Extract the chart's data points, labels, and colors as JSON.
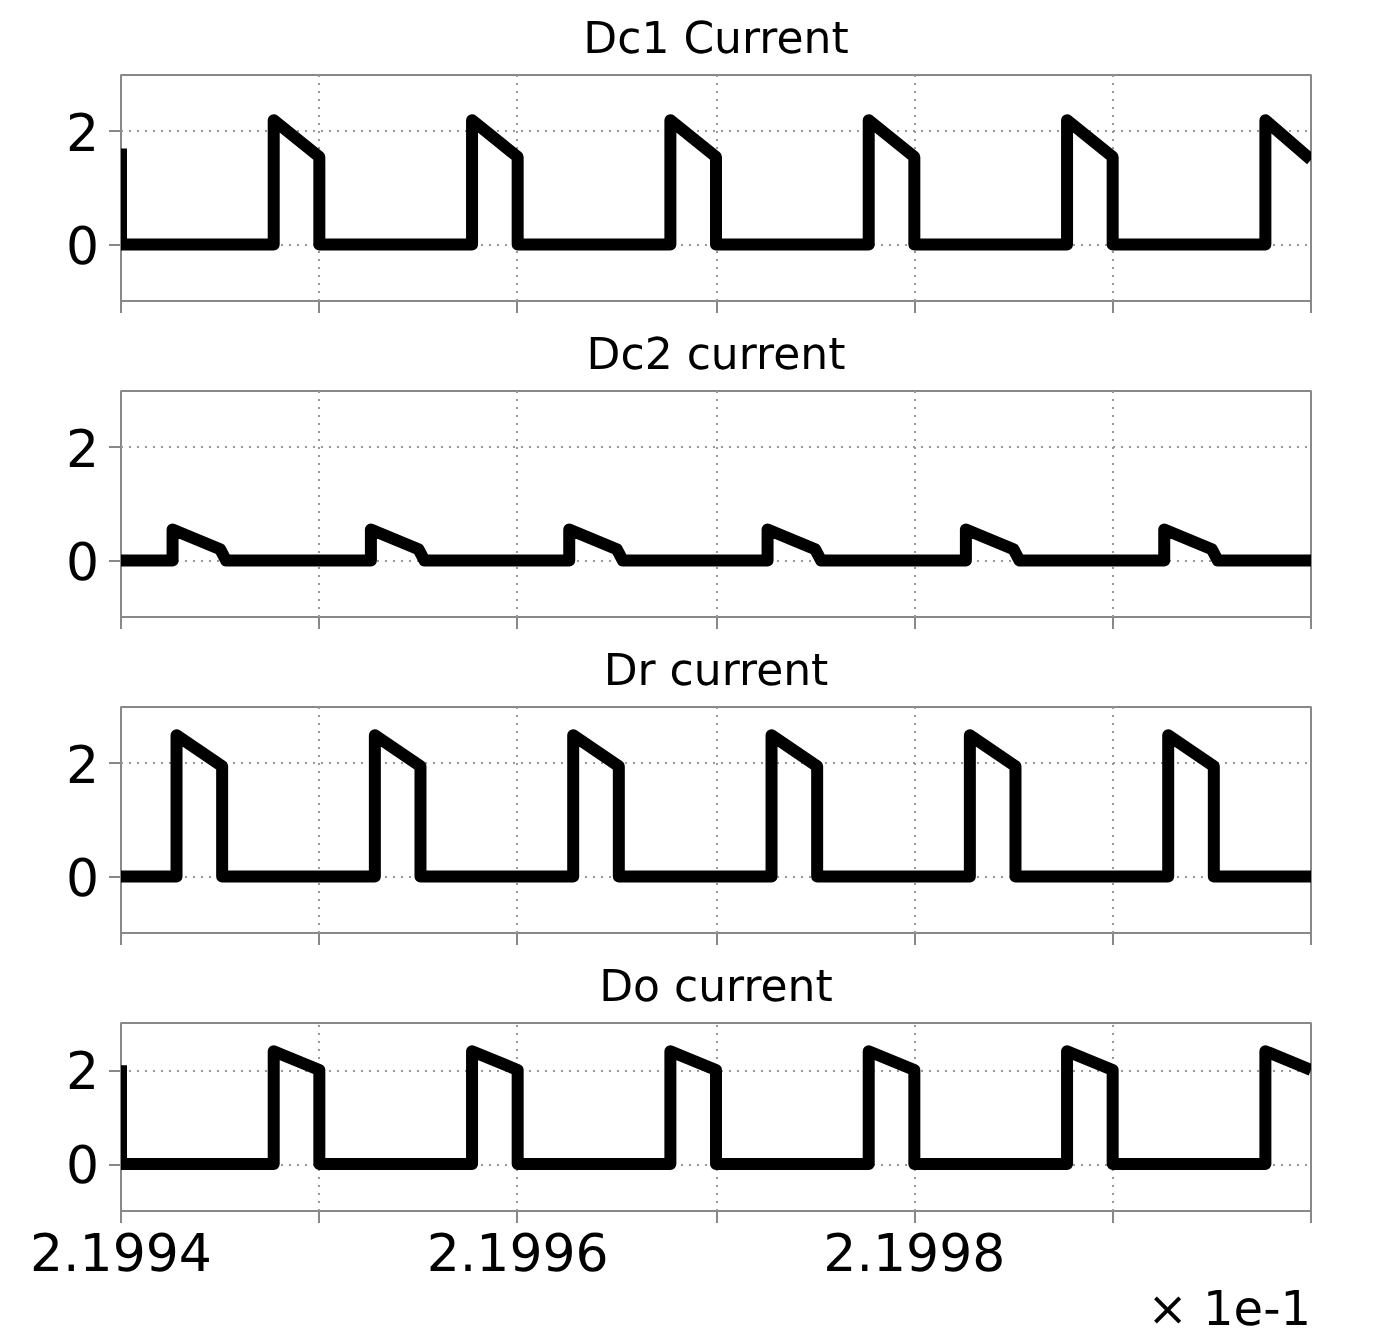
{
  "chart_data": [
    {
      "type": "line",
      "title": "Dc1 Current",
      "xlim": [
        2.1994,
        2.2
      ],
      "ylim": [
        -1,
        3
      ],
      "yticks": [
        0,
        2
      ],
      "xticks": [
        {
          "value": 2.1994,
          "label": null
        },
        {
          "value": 2.1995,
          "label": null
        },
        {
          "value": 2.1996,
          "label": null
        },
        {
          "value": 2.1997,
          "label": null
        },
        {
          "value": 2.1998,
          "label": null
        },
        {
          "value": 2.1999,
          "label": null
        },
        {
          "value": 2.2,
          "label": null
        }
      ],
      "grid": true,
      "tick_labels": "y",
      "series": [
        {
          "color": "#000000",
          "x": [
            2.1994,
            2.1994,
            2.199477,
            2.199477,
            2.1995,
            2.1995,
            2.199577,
            2.199577,
            2.1996,
            2.1996,
            2.199677,
            2.199677,
            2.1997,
            2.1997,
            2.199777,
            2.199777,
            2.1998,
            2.1998,
            2.199877,
            2.199877,
            2.1999,
            2.1999,
            2.199977,
            2.199977,
            2.2
          ],
          "values": [
            1.7,
            0,
            0,
            2.2,
            1.55,
            0,
            0,
            2.2,
            1.55,
            0,
            0,
            2.2,
            1.55,
            0,
            0,
            2.2,
            1.55,
            0,
            0,
            2.2,
            1.55,
            0,
            0,
            2.2,
            1.5
          ]
        }
      ]
    },
    {
      "type": "line",
      "title": "Dc2 current",
      "xlim": [
        2.1994,
        2.2
      ],
      "ylim": [
        -1,
        3
      ],
      "yticks": [
        0,
        2
      ],
      "xticks": [
        {
          "value": 2.1994,
          "label": null
        },
        {
          "value": 2.1995,
          "label": null
        },
        {
          "value": 2.1996,
          "label": null
        },
        {
          "value": 2.1997,
          "label": null
        },
        {
          "value": 2.1998,
          "label": null
        },
        {
          "value": 2.1999,
          "label": null
        },
        {
          "value": 2.2,
          "label": null
        }
      ],
      "grid": true,
      "tick_labels": "y",
      "series": [
        {
          "color": "#000000",
          "x": [
            2.1994,
            2.199426,
            2.199426,
            2.19945,
            2.199453,
            2.199526,
            2.199526,
            2.19955,
            2.199553,
            2.199626,
            2.199626,
            2.19965,
            2.199653,
            2.199726,
            2.199726,
            2.19975,
            2.199753,
            2.199826,
            2.199826,
            2.19985,
            2.199853,
            2.199926,
            2.199926,
            2.19995,
            2.199953,
            2.2
          ],
          "values": [
            0,
            0,
            0.55,
            0.2,
            0,
            0,
            0.55,
            0.2,
            0,
            0,
            0.55,
            0.2,
            0,
            0,
            0.55,
            0.2,
            0,
            0,
            0.55,
            0.2,
            0,
            0,
            0.55,
            0.2,
            0,
            0
          ]
        }
      ]
    },
    {
      "type": "line",
      "title": "Dr current",
      "xlim": [
        2.1994,
        2.2
      ],
      "ylim": [
        -1,
        3
      ],
      "yticks": [
        0,
        2
      ],
      "xticks": [
        {
          "value": 2.1994,
          "label": null
        },
        {
          "value": 2.1995,
          "label": null
        },
        {
          "value": 2.1996,
          "label": null
        },
        {
          "value": 2.1997,
          "label": null
        },
        {
          "value": 2.1998,
          "label": null
        },
        {
          "value": 2.1999,
          "label": null
        },
        {
          "value": 2.2,
          "label": null
        }
      ],
      "grid": true,
      "tick_labels": "y",
      "series": [
        {
          "color": "#000000",
          "x": [
            2.1994,
            2.199428,
            2.199428,
            2.199451,
            2.199451,
            2.199528,
            2.199528,
            2.199551,
            2.199551,
            2.199628,
            2.199628,
            2.199651,
            2.199651,
            2.199728,
            2.199728,
            2.199751,
            2.199751,
            2.199828,
            2.199828,
            2.199851,
            2.199851,
            2.199928,
            2.199928,
            2.199951,
            2.199951,
            2.2
          ],
          "values": [
            0,
            0,
            2.5,
            1.95,
            0,
            0,
            2.5,
            1.95,
            0,
            0,
            2.5,
            1.95,
            0,
            0,
            2.5,
            1.95,
            0,
            0,
            2.5,
            1.95,
            0,
            0,
            2.5,
            1.95,
            0,
            0
          ]
        }
      ]
    },
    {
      "type": "line",
      "title": "Do current",
      "xlim": [
        2.1994,
        2.2
      ],
      "ylim": [
        -1,
        3
      ],
      "yticks": [
        0,
        2
      ],
      "xticks": [
        2.1994,
        {
          "value": 2.1995,
          "label": null
        },
        2.1996,
        {
          "value": 2.1997,
          "label": null
        },
        2.1998,
        {
          "value": 2.1999,
          "label": null
        },
        {
          "value": 2.2,
          "label": null
        }
      ],
      "grid": true,
      "annotations": [
        "× 1e-1"
      ],
      "series": [
        {
          "color": "#000000",
          "x": [
            2.1994,
            2.1994,
            2.199477,
            2.199477,
            2.1995,
            2.1995,
            2.199577,
            2.199577,
            2.1996,
            2.1996,
            2.199677,
            2.199677,
            2.1997,
            2.1997,
            2.199777,
            2.199777,
            2.1998,
            2.1998,
            2.199877,
            2.199877,
            2.1999,
            2.1999,
            2.199977,
            2.199977,
            2.2
          ],
          "values": [
            2.1,
            0,
            0,
            2.4,
            2.0,
            0,
            0,
            2.4,
            2.0,
            0,
            0,
            2.4,
            2.0,
            0,
            0,
            2.4,
            2.0,
            0,
            0,
            2.4,
            2.0,
            0,
            0,
            2.4,
            2.0
          ]
        }
      ]
    }
  ]
}
